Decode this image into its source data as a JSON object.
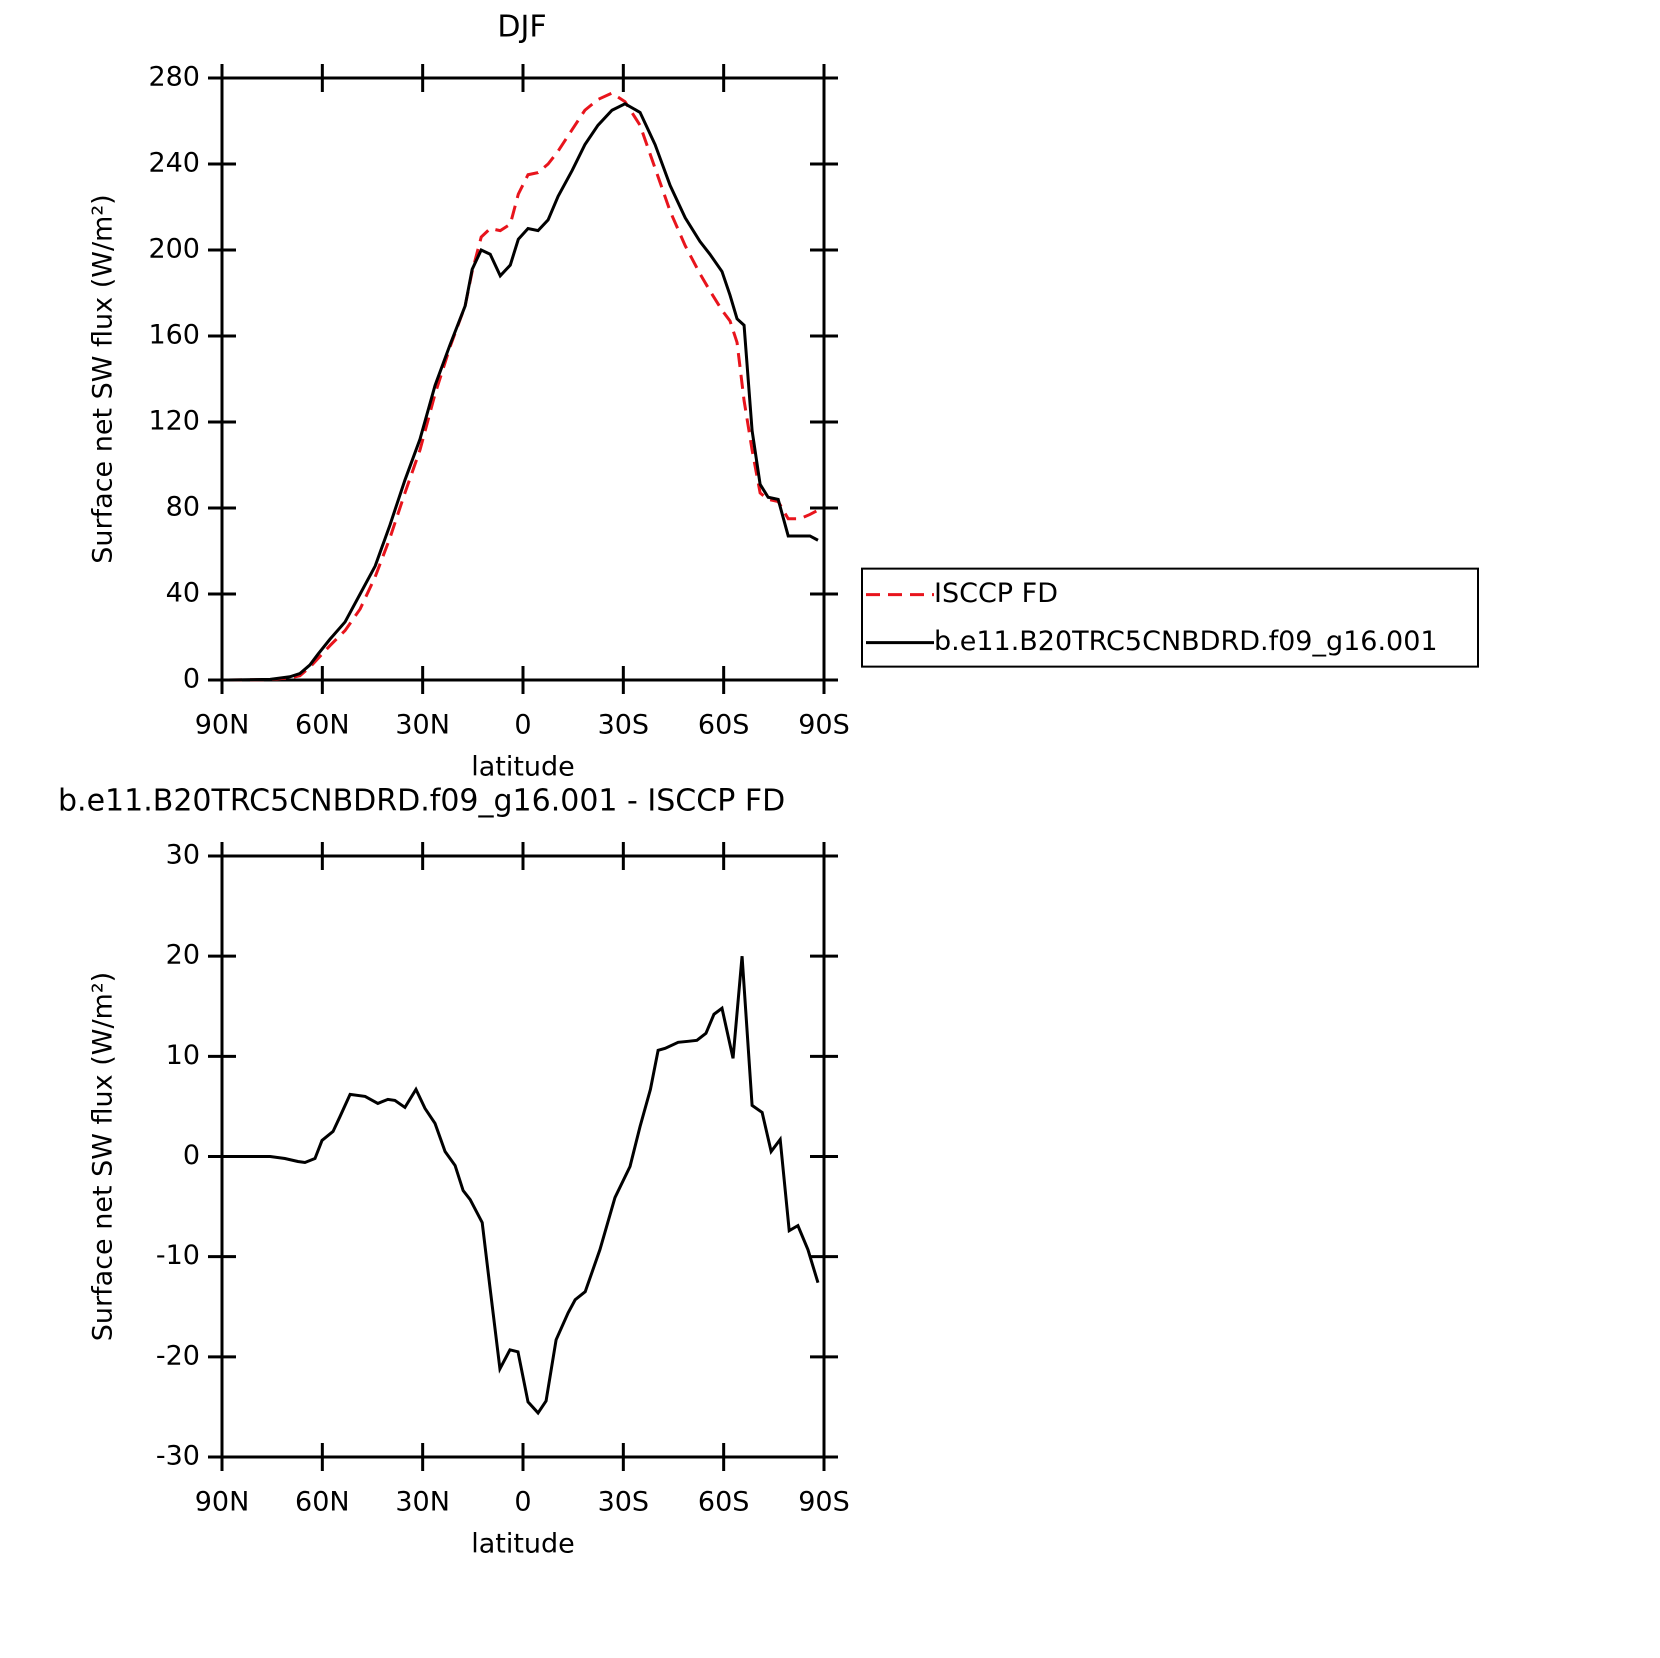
{
  "chart_data": [
    {
      "type": "line",
      "title": "DJF",
      "x_label": "latitude",
      "y_label": "Surface net SW flux (W/m²)",
      "x": [
        88.2,
        75.6,
        69.7,
        66.7,
        63.7,
        61.3,
        57.7,
        53.2,
        48.7,
        44.2,
        39.8,
        35.3,
        30.8,
        26.3,
        21.8,
        17.3,
        15.2,
        12.5,
        9.8,
        6.8,
        3.8,
        1.4,
        -1.5,
        -4.5,
        -7.5,
        -10.5,
        -14.7,
        -18.5,
        -22.4,
        -26.6,
        -30.5,
        -35.0,
        -39.5,
        -44.0,
        -48.5,
        -52.9,
        -55.9,
        -59.5,
        -61.9,
        -64.0,
        -66.1,
        -68.5,
        -70.9,
        -73.3,
        -76.3,
        -79.3,
        -82.8,
        -85.8,
        -88.2
      ],
      "series": [
        {
          "name": "ISCCP FD",
          "color": "#e8141c",
          "line_style": "dashed",
          "values": [
            0,
            0.2,
            1,
            2,
            6,
            10,
            16,
            23,
            33,
            48,
            66,
            87,
            107,
            133,
            155,
            174,
            190,
            206,
            210,
            209,
            212,
            226,
            235,
            236,
            240,
            246,
            256,
            265,
            270,
            273,
            269,
            258,
            238,
            218,
            202,
            189,
            181,
            172,
            167,
            157,
            130,
            107,
            87,
            84,
            83,
            75,
            75,
            77,
            79
          ]
        },
        {
          "name": "b.e11.B20TRC5CNBDRD.f09_g16.001",
          "color": "#000000",
          "line_style": "solid",
          "values": [
            0,
            0.3,
            1.5,
            3,
            7,
            12,
            19,
            27,
            40,
            53,
            72,
            93,
            112,
            137,
            156,
            174,
            191,
            200,
            198,
            188,
            193,
            205,
            210,
            209,
            214,
            225,
            237,
            249,
            258,
            265,
            268,
            264,
            249,
            230,
            215,
            204,
            198,
            190,
            179,
            168,
            165,
            116,
            91,
            85,
            84,
            67,
            67,
            67,
            65
          ]
        }
      ],
      "xlim": [
        90,
        -90
      ],
      "xticks": [
        {
          "value": 90,
          "label": "90N"
        },
        {
          "value": 60,
          "label": "60N"
        },
        {
          "value": 30,
          "label": "30N"
        },
        0,
        {
          "value": -30,
          "label": "30S"
        },
        {
          "value": -60,
          "label": "60S"
        },
        {
          "value": -90,
          "label": "90S"
        }
      ],
      "ylim": [
        0,
        280
      ],
      "yticks": [
        0,
        40,
        80,
        120,
        160,
        200,
        240,
        280
      ],
      "legend": "right"
    },
    {
      "type": "line",
      "title": "b.e11.B20TRC5CNBDRD.f09_g16.001 - ISCCP FD",
      "x_label": "latitude",
      "y_label": "Surface net SW flux (W/m²)",
      "x": [
        88.2,
        75.6,
        71.2,
        67.3,
        65.2,
        62.2,
        60.1,
        56.8,
        54.7,
        51.7,
        47.2,
        43.4,
        40.4,
        38.3,
        35.3,
        32.0,
        29.3,
        26.3,
        23.3,
        20.3,
        17.9,
        15.8,
        12.2,
        9.9,
        6.9,
        3.9,
        1.5,
        -1.5,
        -4.5,
        -6.9,
        -9.9,
        -13.5,
        -15.6,
        -18.6,
        -23.0,
        -27.5,
        -32.0,
        -35.0,
        -38.1,
        -40.4,
        -42.5,
        -46.4,
        -49.4,
        -52.0,
        -54.7,
        -57.1,
        -59.5,
        -62.8,
        -65.5,
        -68.5,
        -71.5,
        -74.2,
        -76.9,
        -79.6,
        -82.2,
        -85.2,
        -88.2
      ],
      "values": [
        0,
        0,
        -0.2,
        -0.5,
        -0.6,
        -0.2,
        1.6,
        2.5,
        4,
        6.2,
        6,
        5.3,
        5.7,
        5.6,
        4.9,
        6.7,
        4.8,
        3.3,
        0.5,
        -0.9,
        -3.4,
        -4.3,
        -6.6,
        -13,
        -21.2,
        -19.3,
        -19.5,
        -24.5,
        -25.6,
        -24.4,
        -18.3,
        -15.6,
        -14.3,
        -13.5,
        -9.3,
        -4.1,
        -1,
        3,
        6.7,
        10.6,
        10.8,
        11.4,
        11.5,
        11.6,
        12.3,
        14.2,
        14.8,
        9.8,
        20,
        5.1,
        4.4,
        0.5,
        1.7,
        -7.4,
        -6.9,
        -9.3,
        -12.6
      ],
      "color": "#000000",
      "xlim": [
        90,
        -90
      ],
      "xticks": [
        {
          "value": 90,
          "label": "90N"
        },
        {
          "value": 60,
          "label": "60N"
        },
        {
          "value": 30,
          "label": "30N"
        },
        0,
        {
          "value": -30,
          "label": "30S"
        },
        {
          "value": -60,
          "label": "60S"
        },
        {
          "value": -90,
          "label": "90S"
        }
      ],
      "ylim": [
        -30,
        30
      ],
      "yticks": [
        -30,
        -20,
        -10,
        0,
        10,
        20,
        30
      ]
    }
  ]
}
